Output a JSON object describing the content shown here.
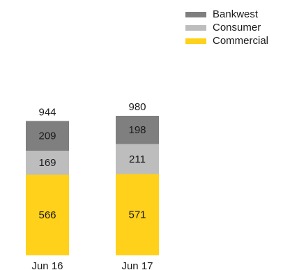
{
  "chart_data": {
    "type": "bar",
    "stacked": true,
    "categories": [
      "Jun 16",
      "Jun 17"
    ],
    "series": [
      {
        "name": "Commercial",
        "values": [
          566,
          571
        ],
        "color": "#FFD11A"
      },
      {
        "name": "Consumer",
        "values": [
          169,
          211
        ],
        "color": "#BDBDBD"
      },
      {
        "name": "Bankwest",
        "values": [
          209,
          198
        ],
        "color": "#7F7F7F"
      }
    ],
    "totals": [
      944,
      980
    ],
    "legend_order": [
      "Bankwest",
      "Consumer",
      "Commercial"
    ],
    "legend_position": "top-right",
    "title": "",
    "xlabel": "",
    "ylabel": "",
    "ylim": [
      0,
      980
    ],
    "grid": false
  }
}
